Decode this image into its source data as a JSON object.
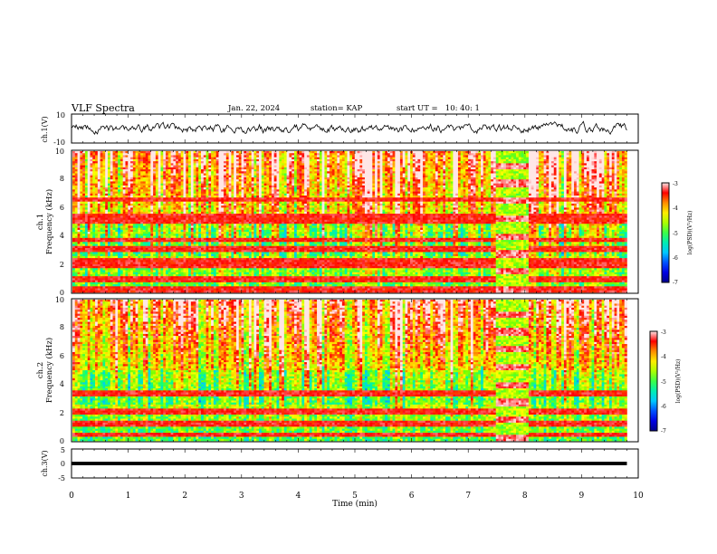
{
  "header": {
    "title": "VLF Spectra",
    "date": "Jan. 22, 2024",
    "station": "station= KAP",
    "start": "start UT =   10: 40: 1"
  },
  "chart_data": [
    {
      "type": "line",
      "name": "ch1-waveform",
      "ylabel": "ch.1(V)",
      "ylim": [
        -10,
        10
      ],
      "y_ticks": [
        "10",
        "-10"
      ],
      "xlim": [
        0,
        10
      ],
      "data_xmax": 9.8,
      "level_y": 0,
      "amplitude": 3,
      "color": "#000000"
    },
    {
      "type": "heatmap",
      "name": "ch1-spectrogram",
      "ylabel_top": "ch.1",
      "ylabel": "Frequency (kHz)",
      "ylim": [
        0,
        10
      ],
      "y_ticks": [
        "0",
        "2",
        "4",
        "6",
        "8",
        "10"
      ],
      "xlim": [
        0,
        10
      ],
      "data_xmax": 9.8,
      "colorbar_label": "log(PSD)(V²/Hz)",
      "colorbar_ticks": [
        "-3",
        "-4",
        "-5",
        "-6",
        "-7"
      ],
      "vrange": [
        -7,
        -3
      ],
      "bands_khz": [
        0.25,
        0.95,
        1.85,
        2.25,
        3.1,
        3.7,
        5.05,
        5.35,
        6.6
      ],
      "burst_window_min": [
        7.5,
        8.05
      ]
    },
    {
      "type": "heatmap",
      "name": "ch2-spectrogram",
      "ylabel_top": "ch.2",
      "ylabel": "Frequency (kHz)",
      "ylim": [
        0,
        10
      ],
      "y_ticks": [
        "0",
        "2",
        "4",
        "6",
        "8",
        "10"
      ],
      "xlim": [
        0,
        10
      ],
      "data_xmax": 9.8,
      "colorbar_label": "log(PSD)(V²/Hz)",
      "colorbar_ticks": [
        "-3",
        "-4",
        "-5",
        "-6",
        "-7"
      ],
      "vrange": [
        -7,
        -3
      ],
      "bands_khz": [
        0.45,
        1.25,
        2.05,
        3.35
      ],
      "burst_window_min": [
        7.5,
        8.05
      ]
    },
    {
      "type": "line",
      "name": "ch3-waveform",
      "ylabel": "ch.3(V)",
      "ylim": [
        -5,
        5
      ],
      "y_ticks": [
        "5",
        "0",
        "-5"
      ],
      "xlim": [
        0,
        10
      ],
      "data_xmax": 9.8,
      "level_y": 0,
      "amplitude": 0.3,
      "color": "#000000"
    }
  ],
  "x_axis": {
    "label": "Time (min)",
    "ticks": [
      "0",
      "1",
      "2",
      "3",
      "4",
      "5",
      "6",
      "7",
      "8",
      "9",
      "10"
    ]
  }
}
